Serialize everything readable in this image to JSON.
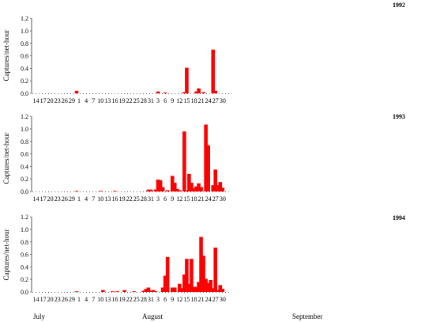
{
  "colors": {
    "bar": "#ff0000",
    "axis": "#555555",
    "text": "#000000",
    "background": "#ffffff"
  },
  "month_labels": [
    "July",
    "August",
    "September"
  ],
  "chart_data": [
    {
      "type": "bar",
      "title": "1992",
      "ylabel": "Captures/net-hour",
      "ylim": [
        0,
        1.2
      ],
      "yticks": [
        "1.2",
        "1.0",
        "0.8",
        "0.6",
        "0.4",
        "0.2",
        "0.0"
      ],
      "xtick_labels": [
        "14",
        "17",
        "20",
        "23",
        "26",
        "29",
        "1",
        "4",
        "7",
        "10",
        "13",
        "16",
        "19",
        "22",
        "25",
        "28",
        "31",
        "3",
        "6",
        "9",
        "12",
        "15",
        "18",
        "21",
        "24",
        "27",
        "30"
      ],
      "bars": [
        {
          "date": "Jul 31",
          "value": 0.04
        },
        {
          "date": "Sep 3",
          "value": 0.03
        },
        {
          "date": "Sep 6",
          "value": 0.015
        },
        {
          "date": "Sep 14",
          "value": 0.02
        },
        {
          "date": "Sep 15",
          "value": 0.41
        },
        {
          "date": "Sep 19",
          "value": 0.03
        },
        {
          "date": "Sep 20",
          "value": 0.08
        },
        {
          "date": "Sep 22",
          "value": 0.02
        },
        {
          "date": "Sep 26",
          "value": 0.7
        },
        {
          "date": "Sep 27",
          "value": 0.04
        }
      ]
    },
    {
      "type": "bar",
      "title": "1993",
      "ylabel": "Captures/net-hour",
      "ylim": [
        0,
        1.2
      ],
      "yticks": [
        "1.2",
        "1.0",
        "0.8",
        "0.6",
        "0.4",
        "0.2",
        "0.0"
      ],
      "xtick_labels": [
        "14",
        "17",
        "20",
        "23",
        "26",
        "29",
        "1",
        "4",
        "7",
        "10",
        "13",
        "16",
        "19",
        "22",
        "25",
        "28",
        "31",
        "3",
        "6",
        "9",
        "12",
        "15",
        "18",
        "21",
        "24",
        "27",
        "30"
      ],
      "bars": [
        {
          "date": "Jul 31",
          "value": 0.01
        },
        {
          "date": "Aug 10",
          "value": 0.01
        },
        {
          "date": "Aug 16",
          "value": 0.01
        },
        {
          "date": "Aug 30",
          "value": 0.03
        },
        {
          "date": "Aug 31",
          "value": 0.03
        },
        {
          "date": "Sep 2",
          "value": 0.03
        },
        {
          "date": "Sep 3",
          "value": 0.19
        },
        {
          "date": "Sep 4",
          "value": 0.18
        },
        {
          "date": "Sep 5",
          "value": 0.07
        },
        {
          "date": "Sep 7",
          "value": 0.02
        },
        {
          "date": "Sep 9",
          "value": 0.25
        },
        {
          "date": "Sep 10",
          "value": 0.14
        },
        {
          "date": "Sep 11",
          "value": 0.04
        },
        {
          "date": "Sep 12",
          "value": 0.02
        },
        {
          "date": "Sep 14",
          "value": 0.96
        },
        {
          "date": "Sep 15",
          "value": 0.02
        },
        {
          "date": "Sep 16",
          "value": 0.28
        },
        {
          "date": "Sep 17",
          "value": 0.14
        },
        {
          "date": "Sep 18",
          "value": 0.05
        },
        {
          "date": "Sep 19",
          "value": 0.08
        },
        {
          "date": "Sep 20",
          "value": 0.13
        },
        {
          "date": "Sep 21",
          "value": 0.07
        },
        {
          "date": "Sep 23",
          "value": 1.07
        },
        {
          "date": "Sep 24",
          "value": 0.74
        },
        {
          "date": "Sep 26",
          "value": 0.1
        },
        {
          "date": "Sep 27",
          "value": 0.35
        },
        {
          "date": "Sep 28",
          "value": 0.1
        },
        {
          "date": "Sep 29",
          "value": 0.15
        },
        {
          "date": "Sep 30",
          "value": 0.06
        }
      ]
    },
    {
      "type": "bar",
      "title": "1994",
      "ylabel": "Captures/net-hour",
      "ylim": [
        0,
        1.2
      ],
      "yticks": [
        "1.2",
        "1.0",
        "0.8",
        "0.6",
        "0.4",
        "0.2",
        "0.0"
      ],
      "xtick_labels": [
        "14",
        "17",
        "20",
        "23",
        "26",
        "29",
        "1",
        "4",
        "7",
        "10",
        "13",
        "16",
        "19",
        "22",
        "25",
        "28",
        "31",
        "3",
        "6",
        "9",
        "12",
        "15",
        "18",
        "21",
        "24",
        "27",
        "30"
      ],
      "bars": [
        {
          "date": "Jul 31",
          "value": 0.01
        },
        {
          "date": "Aug 11",
          "value": 0.03
        },
        {
          "date": "Aug 15",
          "value": 0.01
        },
        {
          "date": "Aug 17",
          "value": 0.01
        },
        {
          "date": "Aug 20",
          "value": 0.03
        },
        {
          "date": "Aug 24",
          "value": 0.01
        },
        {
          "date": "Aug 28",
          "value": 0.02
        },
        {
          "date": "Aug 29",
          "value": 0.05
        },
        {
          "date": "Aug 30",
          "value": 0.07
        },
        {
          "date": "Aug 31",
          "value": 0.02
        },
        {
          "date": "Sep 1",
          "value": 0.03
        },
        {
          "date": "Sep 2",
          "value": 0.01
        },
        {
          "date": "Sep 5",
          "value": 0.07
        },
        {
          "date": "Sep 6",
          "value": 0.26
        },
        {
          "date": "Sep 7",
          "value": 0.56
        },
        {
          "date": "Sep 9",
          "value": 0.07
        },
        {
          "date": "Sep 10",
          "value": 0.07
        },
        {
          "date": "Sep 12",
          "value": 0.13
        },
        {
          "date": "Sep 13",
          "value": 0.06
        },
        {
          "date": "Sep 14",
          "value": 0.28
        },
        {
          "date": "Sep 15",
          "value": 0.53
        },
        {
          "date": "Sep 16",
          "value": 0.13
        },
        {
          "date": "Sep 17",
          "value": 0.53
        },
        {
          "date": "Sep 18",
          "value": 0.08
        },
        {
          "date": "Sep 19",
          "value": 0.08
        },
        {
          "date": "Sep 20",
          "value": 0.16
        },
        {
          "date": "Sep 21",
          "value": 0.88
        },
        {
          "date": "Sep 22",
          "value": 0.58
        },
        {
          "date": "Sep 23",
          "value": 0.21
        },
        {
          "date": "Sep 24",
          "value": 0.14
        },
        {
          "date": "Sep 25",
          "value": 0.19
        },
        {
          "date": "Sep 26",
          "value": 0.06
        },
        {
          "date": "Sep 27",
          "value": 0.71
        },
        {
          "date": "Sep 28",
          "value": 0.03
        },
        {
          "date": "Sep 29",
          "value": 0.11
        },
        {
          "date": "Sep 30",
          "value": 0.05
        }
      ]
    }
  ]
}
